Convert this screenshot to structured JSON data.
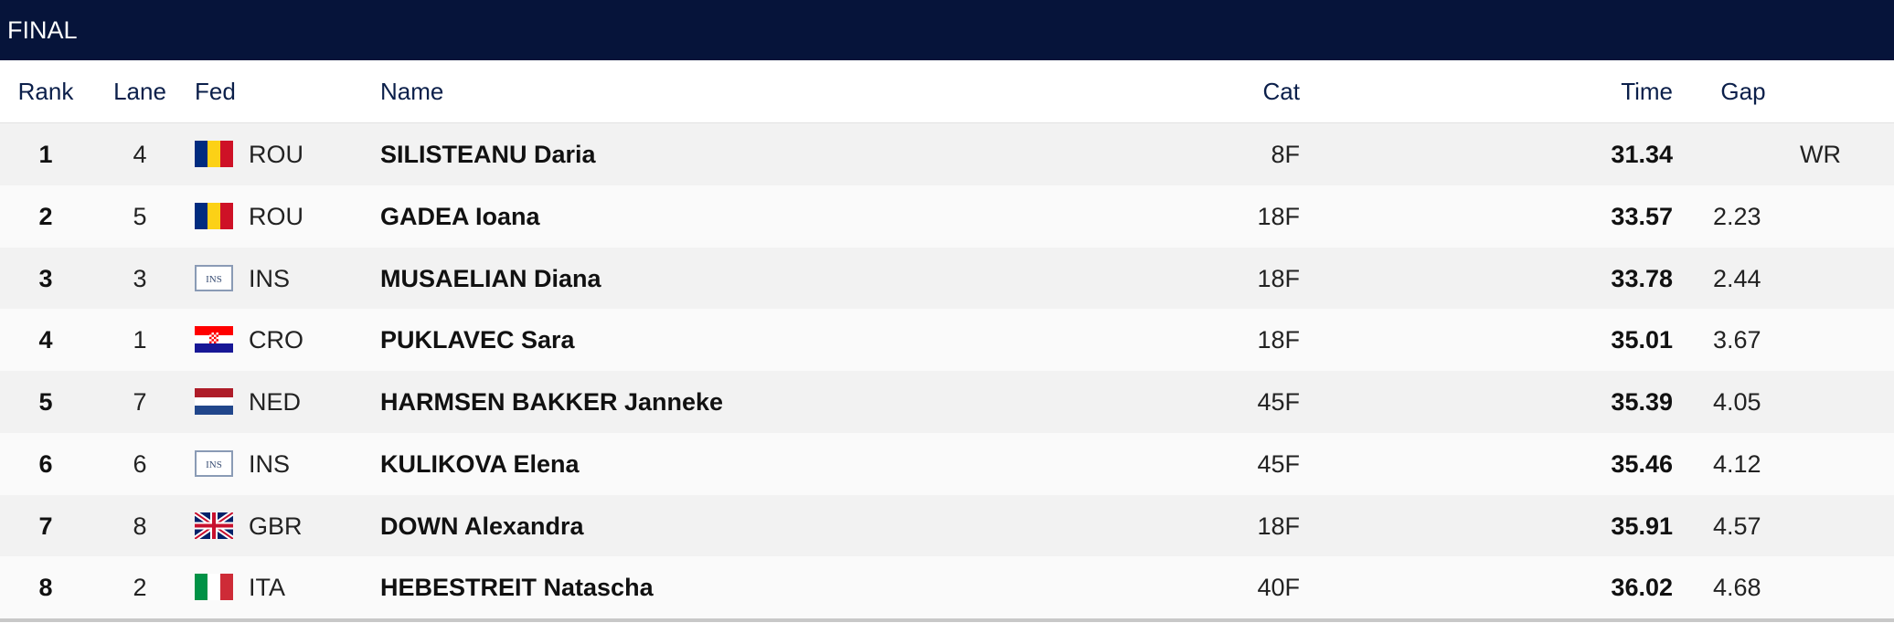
{
  "header": {
    "title": "FINAL"
  },
  "table": {
    "columns": {
      "rank": "Rank",
      "lane": "Lane",
      "fed": "Fed",
      "name": "Name",
      "cat": "Cat",
      "time": "Time",
      "gap": "Gap"
    },
    "rows": [
      {
        "rank": 1,
        "lane": 4,
        "fed": "ROU",
        "name": "SILISTEANU Daria",
        "cat": "8F",
        "time": 31.34,
        "note": "WR"
      },
      {
        "rank": 2,
        "lane": 5,
        "fed": "ROU",
        "name": "GADEA Ioana",
        "cat": "18F",
        "time": 33.57,
        "gap": 2.23
      },
      {
        "rank": 3,
        "lane": 3,
        "fed": "INS",
        "name": "MUSAELIAN Diana",
        "cat": "18F",
        "time": 33.78,
        "gap": 2.44
      },
      {
        "rank": 4,
        "lane": 1,
        "fed": "CRO",
        "name": "PUKLAVEC Sara",
        "cat": "18F",
        "time": 35.01,
        "gap": 3.67
      },
      {
        "rank": 5,
        "lane": 7,
        "fed": "NED",
        "name": "HARMSEN BAKKER Janneke",
        "cat": "45F",
        "time": 35.39,
        "gap": 4.05
      },
      {
        "rank": 6,
        "lane": 6,
        "fed": "INS",
        "name": "KULIKOVA Elena",
        "cat": "45F",
        "time": 35.46,
        "gap": 4.12
      },
      {
        "rank": 7,
        "lane": 8,
        "fed": "GBR",
        "name": "DOWN Alexandra",
        "cat": "18F",
        "time": 35.91,
        "gap": 4.57
      },
      {
        "rank": 8,
        "lane": 2,
        "fed": "ITA",
        "name": "HEBESTREIT Natascha",
        "cat": "40F",
        "time": 36.02,
        "gap": 4.68
      }
    ]
  }
}
